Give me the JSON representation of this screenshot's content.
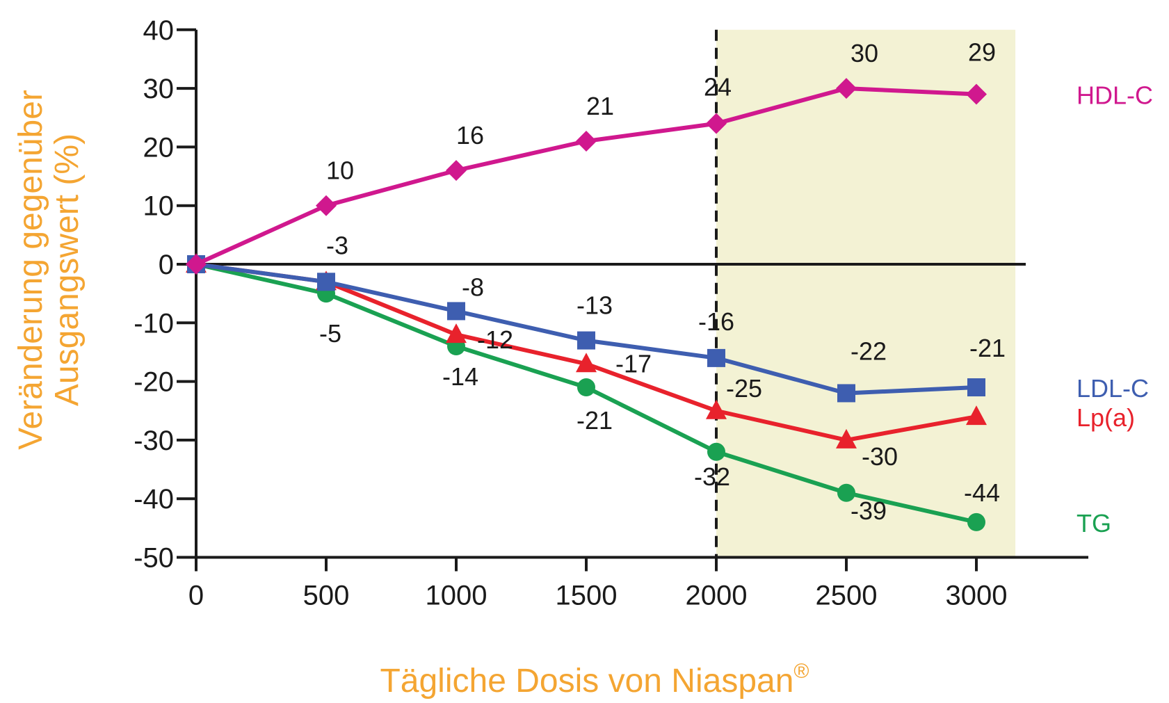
{
  "chart_data": {
    "type": "line",
    "xlabel": "Tägliche Dosis von Niaspan",
    "xlabel_superscript": "®",
    "ylabel_line1": "Veränderung gegenüber",
    "ylabel_line2": "Ausgangswert (%)",
    "xlim": [
      0,
      3200
    ],
    "ylim": [
      -50,
      40
    ],
    "xticks": [
      0,
      500,
      1000,
      1500,
      2000,
      2500,
      3000
    ],
    "yticks": [
      40,
      30,
      20,
      10,
      0,
      -10,
      -20,
      -30,
      -40,
      -50
    ],
    "highlight_region": {
      "x_start": 2000,
      "x_end": 3150,
      "color": "#f3f2d4"
    },
    "reference_line_x": 2000,
    "series": [
      {
        "name": "HDL-C",
        "color": "#d0188e",
        "marker": "diamond",
        "x": [
          0,
          500,
          1000,
          1500,
          2000,
          2500,
          3000
        ],
        "values": [
          0,
          10,
          16,
          21,
          24,
          30,
          29
        ],
        "labels": [
          "",
          "10",
          "16",
          "21",
          "24",
          "30",
          "29"
        ]
      },
      {
        "name": "LDL-C",
        "color": "#3e5eb0",
        "marker": "square",
        "x": [
          0,
          500,
          1000,
          1500,
          2000,
          2500,
          3000
        ],
        "values": [
          0,
          -3,
          -8,
          -13,
          -16,
          -22,
          -21
        ],
        "labels": [
          "",
          "-3",
          "-8",
          "-13",
          "-16",
          "-22",
          "-21"
        ]
      },
      {
        "name": "Lp(a)",
        "color": "#e8222c",
        "marker": "triangle",
        "x": [
          0,
          500,
          1000,
          1500,
          2000,
          2500,
          3000
        ],
        "values": [
          0,
          -3,
          -12,
          -17,
          -25,
          -30,
          -26
        ],
        "labels": [
          "",
          "",
          "-12",
          "-17",
          "-25",
          "-30",
          ""
        ]
      },
      {
        "name": "TG",
        "color": "#1aa152",
        "marker": "circle",
        "x": [
          0,
          500,
          1000,
          1500,
          2000,
          2500,
          3000
        ],
        "values": [
          0,
          -5,
          -14,
          -21,
          -32,
          -39,
          -44
        ],
        "labels": [
          "",
          "-5",
          "-14",
          "-21",
          "-32",
          "-39",
          "-44"
        ]
      }
    ],
    "grid": false,
    "accent_color": "#f4a532"
  }
}
